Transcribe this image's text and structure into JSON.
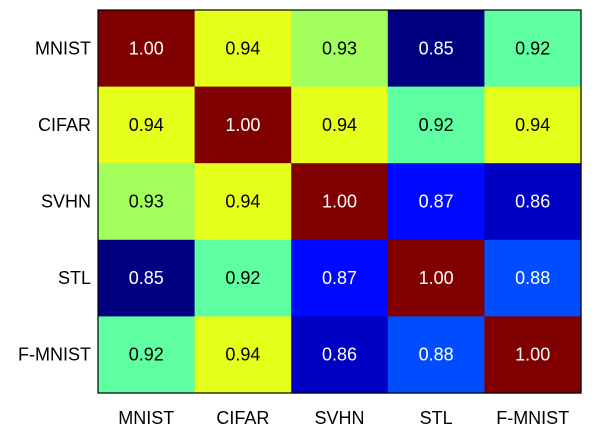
{
  "chart_data": {
    "type": "heatmap",
    "title": "",
    "xlabel": "",
    "ylabel": "",
    "x_categories": [
      "MNIST",
      "CIFAR",
      "SVHN",
      "STL",
      "F-MNIST"
    ],
    "y_categories": [
      "MNIST",
      "CIFAR",
      "SVHN",
      "STL",
      "F-MNIST"
    ],
    "values": [
      [
        1.0,
        0.94,
        0.93,
        0.85,
        0.92
      ],
      [
        0.94,
        1.0,
        0.94,
        0.92,
        0.94
      ],
      [
        0.93,
        0.94,
        1.0,
        0.87,
        0.86
      ],
      [
        0.85,
        0.92,
        0.87,
        1.0,
        0.88
      ],
      [
        0.92,
        0.94,
        0.86,
        0.88,
        1.0
      ]
    ],
    "value_labels": [
      [
        "1.00",
        "0.94",
        "0.93",
        "0.85",
        "0.92"
      ],
      [
        "0.94",
        "1.00",
        "0.94",
        "0.92",
        "0.94"
      ],
      [
        "0.93",
        "0.94",
        "1.00",
        "0.87",
        "0.86"
      ],
      [
        "0.85",
        "0.92",
        "0.87",
        "1.00",
        "0.88"
      ],
      [
        "0.92",
        "0.94",
        "0.86",
        "0.88",
        "1.00"
      ]
    ],
    "colormap": "jet",
    "grid": false,
    "legend": "none"
  }
}
